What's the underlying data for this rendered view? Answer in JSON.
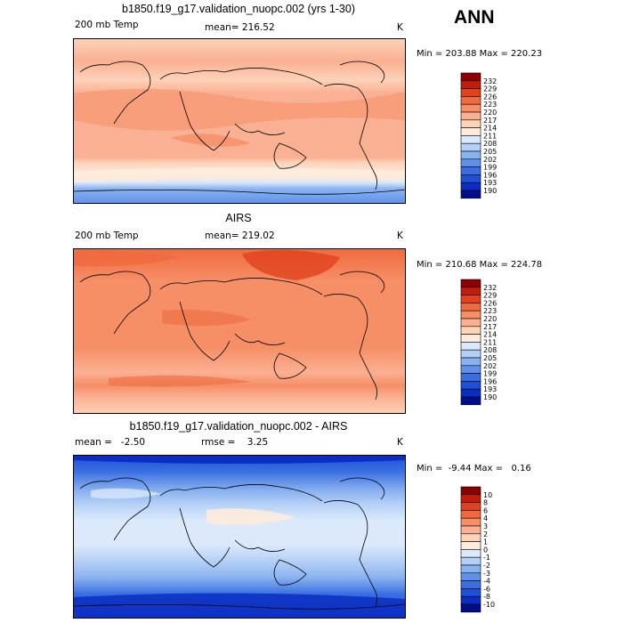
{
  "season": "ANN",
  "panels": [
    {
      "title": "b1850.f19_g17.validation_nuopc.002 (yrs 1-30)",
      "variable": "200 mb Temp",
      "stat": "mean= 216.52",
      "units": "K",
      "minmax": "Min = 203.88 Max = 220.23",
      "levels": [
        "232",
        "229",
        "226",
        "223",
        "220",
        "217",
        "214",
        "211",
        "208",
        "205",
        "202",
        "199",
        "196",
        "193",
        "190"
      ],
      "colors": [
        "#8b0000",
        "#c21d0a",
        "#e0421d",
        "#ef6a3f",
        "#f68f66",
        "#fab092",
        "#fcd2b8",
        "#fdebdc",
        "#dbe9fb",
        "#b4d0f6",
        "#89b2f0",
        "#5f91ea",
        "#3a6fe2",
        "#1d4fd7",
        "#0a2ec2",
        "#000e8b"
      ]
    },
    {
      "title": "AIRS",
      "variable": "200 mb Temp",
      "stat": "mean= 219.02",
      "units": "K",
      "minmax": "Min = 210.68 Max = 224.78",
      "levels": [
        "232",
        "229",
        "226",
        "223",
        "220",
        "217",
        "214",
        "211",
        "208",
        "205",
        "202",
        "199",
        "196",
        "193",
        "190"
      ],
      "colors": [
        "#8b0000",
        "#c21d0a",
        "#e0421d",
        "#ef6a3f",
        "#f68f66",
        "#fab092",
        "#fcd2b8",
        "#fdebdc",
        "#dbe9fb",
        "#b4d0f6",
        "#89b2f0",
        "#5f91ea",
        "#3a6fe2",
        "#1d4fd7",
        "#0a2ec2",
        "#000e8b"
      ]
    },
    {
      "title": "b1850.f19_g17.validation_nuopc.002 - AIRS",
      "variable": "mean =   -2.50",
      "stat": "rmse =    3.25",
      "units": "K",
      "minmax": "Min =  -9.44 Max =   0.16",
      "levels": [
        "10",
        "8",
        "6",
        "4",
        "3",
        "2",
        "1",
        "0",
        "-1",
        "-2",
        "-3",
        "-4",
        "-6",
        "-8",
        "-10"
      ],
      "colors": [
        "#8b0000",
        "#c21d0a",
        "#e0421d",
        "#ef6a3f",
        "#f68f66",
        "#fab092",
        "#fcd2b8",
        "#fdebdc",
        "#dbe9fb",
        "#b4d0f6",
        "#89b2f0",
        "#5f91ea",
        "#3a6fe2",
        "#1d4fd7",
        "#0a2ec2",
        "#000e8b"
      ]
    }
  ]
}
